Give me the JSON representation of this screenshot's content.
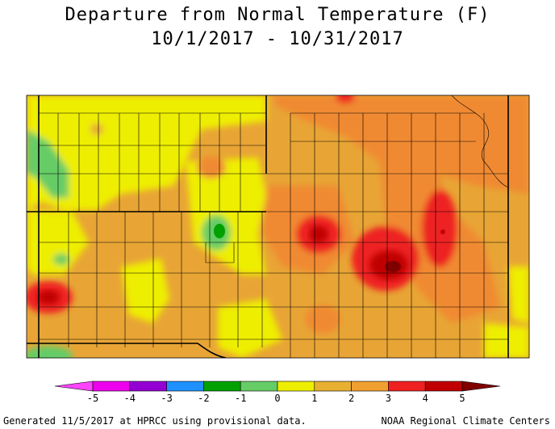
{
  "title": "Departure from Normal Temperature (F)",
  "subtitle": "10/1/2017 - 10/31/2017",
  "legend": {
    "ticks": [
      "-5",
      "-4",
      "-3",
      "-2",
      "-1",
      "0",
      "1",
      "2",
      "3",
      "4",
      "5"
    ],
    "bins": [
      {
        "from": -5,
        "to": -4,
        "color": "#ee00ee"
      },
      {
        "from": -4,
        "to": -3,
        "color": "#9400d3"
      },
      {
        "from": -3,
        "to": -2,
        "color": "#1e90ff"
      },
      {
        "from": -2,
        "to": -1,
        "color": "#00a000"
      },
      {
        "from": -1,
        "to": 0,
        "color": "#66cc66"
      },
      {
        "from": 0,
        "to": 1,
        "color": "#eeee00"
      },
      {
        "from": 1,
        "to": 2,
        "color": "#e8b030"
      },
      {
        "from": 2,
        "to": 3,
        "color": "#f0a030"
      },
      {
        "from": 3,
        "to": 4,
        "color": "#ee2020"
      },
      {
        "from": 4,
        "to": 5,
        "color": "#c00000"
      }
    ],
    "low_end_color": "#ff44ff",
    "high_end_color": "#800000"
  },
  "footer_left": "Generated 11/5/2017 at HPRCC using provisional data.",
  "footer_right": "NOAA Regional Climate Centers"
}
